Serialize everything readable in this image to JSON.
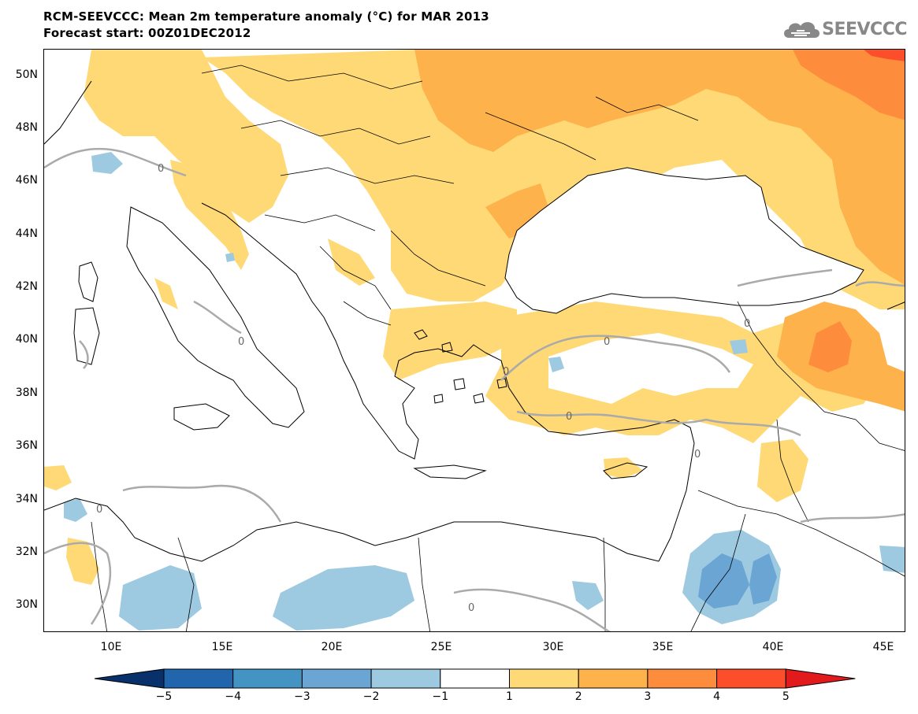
{
  "header": {
    "title_line1": "RCM-SEEVCCC: Mean 2m temperature anomaly (°C) for MAR 2013",
    "title_line2": "Forecast start: 00Z01DEC2012",
    "logo_text": "SEEVCCC",
    "logo_icon": "cloud-icon"
  },
  "map": {
    "lat_labels": [
      "50N",
      "48N",
      "46N",
      "44N",
      "42N",
      "40N",
      "38N",
      "36N",
      "34N",
      "32N",
      "30N"
    ],
    "lon_labels": [
      "10E",
      "15E",
      "20E",
      "25E",
      "30E",
      "35E",
      "40E",
      "45E"
    ],
    "contour_label": "0"
  },
  "colorbar": {
    "labels": [
      "−5",
      "−4",
      "−3",
      "−2",
      "−1",
      "1",
      "2",
      "3",
      "4",
      "5"
    ],
    "colors": [
      "#08306b",
      "#2166ac",
      "#4393c3",
      "#6aa5d4",
      "#9ecae1",
      "#ffffff",
      "#fed976",
      "#fdb24c",
      "#fd8d3c",
      "#fc4e2a",
      "#e31a1c"
    ]
  }
}
